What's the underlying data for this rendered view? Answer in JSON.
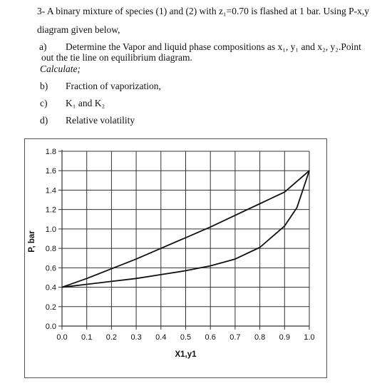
{
  "problem": {
    "intro": "3- A binary mixture of species (1) and (2) with z₁=0.70 is flashed at 1 bar. Using P-x,y",
    "intro_cont": "diagram given below,",
    "a_label": "a)",
    "a_text": "Determine the Vapor and liquid phase compositions as x₁, y₁ and x₂, y₂.Point",
    "a_text_cont": "out the tie line on equilibrium diagram.",
    "calculate": "Calculate;",
    "items": [
      {
        "label": "b)",
        "text": "Fraction of vaporization,"
      },
      {
        "label": "c)",
        "text": "K₁ and K₂"
      },
      {
        "label": "d)",
        "text": "Relative volatility"
      }
    ]
  },
  "chart_data": {
    "type": "line",
    "title": "",
    "xlabel": "X1,y1",
    "ylabel": "P, bar",
    "xlim": [
      0.0,
      1.0
    ],
    "ylim": [
      0.0,
      1.8
    ],
    "xticks": [
      "0.0",
      "0.1",
      "0.2",
      "0.3",
      "0.4",
      "0.5",
      "0.6",
      "0.7",
      "0.8",
      "0.9",
      "1.0"
    ],
    "yticks": [
      "0.0",
      "0.2",
      "0.4",
      "0.6",
      "0.8",
      "1.0",
      "1.2",
      "1.4",
      "1.6",
      "1.8"
    ],
    "grid": true,
    "series": [
      {
        "x": [
          0.0,
          0.1,
          0.2,
          0.3,
          0.4,
          0.5,
          0.6,
          0.7,
          0.8,
          0.9,
          1.0
        ],
        "values": [
          0.4,
          0.49,
          0.59,
          0.69,
          0.8,
          0.91,
          1.02,
          1.14,
          1.26,
          1.38,
          1.6
        ]
      },
      {
        "x": [
          0.0,
          0.1,
          0.2,
          0.3,
          0.4,
          0.5,
          0.6,
          0.7,
          0.8,
          0.9,
          0.95,
          1.0
        ],
        "values": [
          0.4,
          0.43,
          0.46,
          0.49,
          0.53,
          0.57,
          0.62,
          0.69,
          0.81,
          1.03,
          1.22,
          1.6
        ]
      }
    ]
  }
}
